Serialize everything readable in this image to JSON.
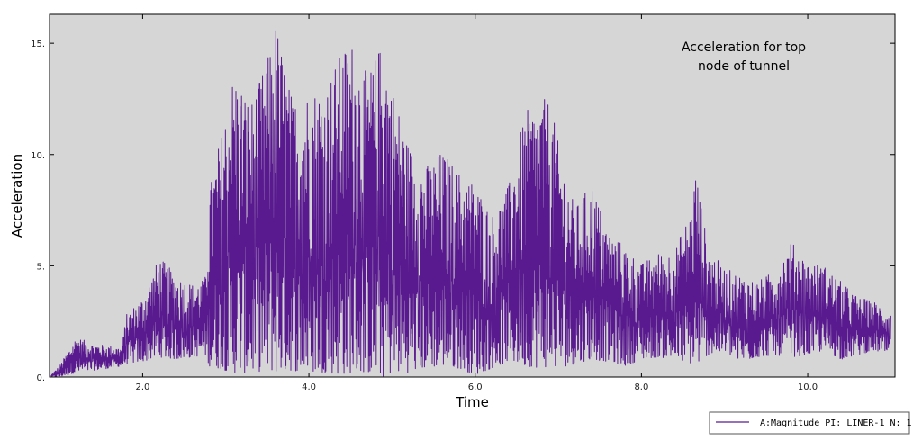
{
  "chart_data": {
    "type": "line",
    "annotation_lines": [
      "Acceleration for top",
      "node of tunnel"
    ],
    "xlabel": "Time",
    "ylabel": "Acceleration",
    "x_ticks": [
      2.0,
      4.0,
      6.0,
      8.0,
      10.0
    ],
    "x_tick_labels": [
      "2.0",
      "4.0",
      "6.0",
      "8.0",
      "10.0"
    ],
    "y_ticks": [
      0,
      5,
      10,
      15
    ],
    "y_tick_labels": [
      "0.",
      "5.",
      "10.",
      "15."
    ],
    "xlim": [
      0.88,
      11.05
    ],
    "ylim": [
      0,
      16.3
    ],
    "grid": false,
    "legend_position": "bottom-right",
    "background_color": "#d6d6d6",
    "series": [
      {
        "name": "A:Magnitude PI: LINER-1 N: 1",
        "color": "#5a1a8f",
        "envelope": {
          "x": [
            0.9,
            1.0,
            1.2,
            1.4,
            1.6,
            1.75,
            1.8,
            2.0,
            2.2,
            2.4,
            2.6,
            2.75,
            2.8,
            3.0,
            3.1,
            3.3,
            3.5,
            3.6,
            3.8,
            4.0,
            4.2,
            4.4,
            4.5,
            4.7,
            4.9,
            5.0,
            5.2,
            5.4,
            5.6,
            5.8,
            6.0,
            6.2,
            6.4,
            6.6,
            6.8,
            6.9,
            7.0,
            7.2,
            7.4,
            7.6,
            7.8,
            8.0,
            8.2,
            8.4,
            8.6,
            8.65,
            8.8,
            9.0,
            9.2,
            9.4,
            9.6,
            9.8,
            10.0,
            10.2,
            10.4,
            10.6,
            10.8,
            11.0
          ],
          "high": [
            0.1,
            0.5,
            1.8,
            1.5,
            1.4,
            1.3,
            2.8,
            3.6,
            5.4,
            4.6,
            4.2,
            4.4,
            8.4,
            12.0,
            13.9,
            12.4,
            14.3,
            16.1,
            12.5,
            13.0,
            13.2,
            14.7,
            15.3,
            13.6,
            15.3,
            13.2,
            10.5,
            9.5,
            10.2,
            9.3,
            8.8,
            7.3,
            8.6,
            11.9,
            12.5,
            12.5,
            10.5,
            7.6,
            8.8,
            6.6,
            5.9,
            5.1,
            5.6,
            5.7,
            7.6,
            9.5,
            5.8,
            4.9,
            4.6,
            4.3,
            4.8,
            6.1,
            5.2,
            5.0,
            4.3,
            3.6,
            3.4,
            2.9
          ],
          "low": [
            0.0,
            0.0,
            0.2,
            0.3,
            0.4,
            0.5,
            0.6,
            0.7,
            0.9,
            0.8,
            0.9,
            1.0,
            0.5,
            0.3,
            0.2,
            0.2,
            0.3,
            0.2,
            0.3,
            0.2,
            0.2,
            0.1,
            0.2,
            0.2,
            0.0,
            0.2,
            0.2,
            0.4,
            0.5,
            0.4,
            0.1,
            0.4,
            0.7,
            0.5,
            0.4,
            0.5,
            0.4,
            0.6,
            0.8,
            0.7,
            0.5,
            0.8,
            0.9,
            0.8,
            0.6,
            0.5,
            1.0,
            1.1,
            0.7,
            0.9,
            1.0,
            0.9,
            1.0,
            1.2,
            0.8,
            1.0,
            1.2,
            1.0
          ]
        }
      }
    ]
  }
}
